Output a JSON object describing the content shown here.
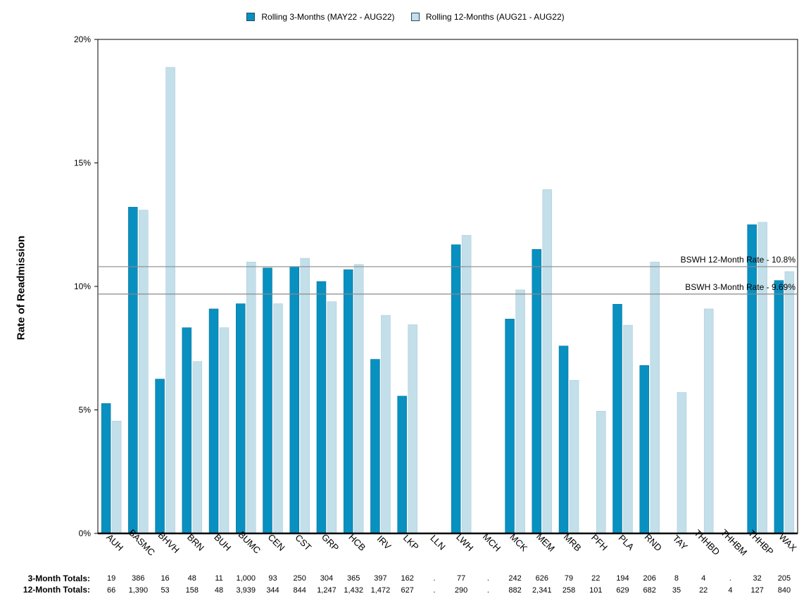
{
  "chart_data": {
    "type": "bar",
    "title": "",
    "xlabel": "",
    "ylabel": "Rate of Readmission",
    "ylim": [
      0,
      20
    ],
    "ytick_values": [
      0,
      5,
      10,
      15,
      20
    ],
    "ytick_labels": [
      "0%",
      "5%",
      "10%",
      "15%",
      "20%"
    ],
    "legend_position": "top-center",
    "categories": [
      "AUH",
      "BASMC",
      "BHVH",
      "BRN",
      "BUH",
      "BUMC",
      "CEN",
      "CST",
      "GRP",
      "HCB",
      "IRV",
      "LKP",
      "LLN",
      "LWH",
      "MCH",
      "MCK",
      "MEM",
      "MRB",
      "PFH",
      "PLA",
      "RND",
      "TAY",
      "THHBD",
      "THHBM",
      "THHBP",
      "WAX"
    ],
    "series": [
      {
        "name": "Rolling 3-Months (MAY22 - AUG22)",
        "color": "#0890c0",
        "values": [
          5.26,
          13.21,
          6.25,
          8.33,
          9.09,
          9.3,
          10.75,
          10.8,
          10.2,
          10.68,
          7.05,
          5.56,
          null,
          11.69,
          null,
          8.68,
          11.5,
          7.59,
          null,
          9.28,
          6.8,
          null,
          null,
          null,
          12.5,
          10.24
        ]
      },
      {
        "name": "Rolling 12-Months (AUG21 - AUG22)",
        "color": "#c2dfea",
        "values": [
          4.55,
          13.09,
          18.87,
          6.96,
          8.33,
          10.99,
          9.3,
          11.14,
          9.38,
          10.89,
          8.83,
          8.45,
          null,
          12.07,
          null,
          9.86,
          13.92,
          6.2,
          4.95,
          8.43,
          10.99,
          5.71,
          9.09,
          null,
          12.6,
          10.6
        ]
      }
    ],
    "reference_lines": [
      {
        "label": "BSWH 12-Month Rate - 10.8%",
        "value": 10.8
      },
      {
        "label": "BSWH  3-Month Rate - 9.69%",
        "value": 9.69
      }
    ],
    "totals": {
      "three_month_label": "3-Month Totals:",
      "twelve_month_label": "12-Month Totals:",
      "three_month": [
        "19",
        "386",
        "16",
        "48",
        "11",
        "1,000",
        "93",
        "250",
        "304",
        "365",
        "397",
        "162",
        ".",
        "77",
        ".",
        "242",
        "626",
        "79",
        "22",
        "194",
        "206",
        "8",
        "4",
        ".",
        "32",
        "205"
      ],
      "twelve_month": [
        "66",
        "1,390",
        "53",
        "158",
        "48",
        "3,939",
        "344",
        "844",
        "1,247",
        "1,432",
        "1,472",
        "627",
        ".",
        "290",
        ".",
        "882",
        "2,341",
        "258",
        "101",
        "629",
        "682",
        "35",
        "22",
        "4",
        "127",
        "840"
      ]
    }
  }
}
